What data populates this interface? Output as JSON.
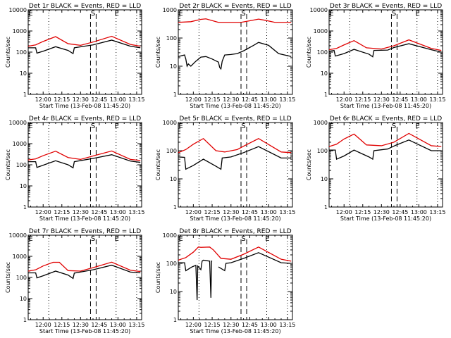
{
  "figure": {
    "xlabel": "Start Time (13-Feb-08 11:45:20)",
    "ylabel": "Counts/sec",
    "legend_text": "BLACK = Events, RED = LLD",
    "colors": {
      "events": "#000000",
      "lld": "#e00000",
      "axes": "#000000",
      "background": "#ffffff"
    }
  },
  "chart_data": [
    {
      "type": "line",
      "title": "Det 1r BLACK = Events, RED = LLD",
      "xlabel": "Start Time (13-Feb-08 11:45:20)",
      "ylabel": "Counts/sec",
      "yscale": "log",
      "ylim": [
        1,
        10000
      ],
      "yticks": [
        "1",
        "10",
        "100",
        "1000",
        "10000"
      ],
      "xlim_minutes": [
        708,
        799
      ],
      "xticks": [
        "12:00",
        "12:15",
        "12:30",
        "12:45",
        "13:00",
        "13:15"
      ],
      "markers": {
        "dotted_min": [
          724.5,
          778.5,
          795
        ],
        "dashed_min": [
          758,
          762.5
        ],
        "labels": [
          {
            "t": "E",
            "min": 710
          },
          {
            "t": "S",
            "min": 760
          },
          {
            "t": "E",
            "min": 779
          }
        ]
      },
      "series": [
        {
          "name": "Events",
          "color": "#000000",
          "x": [
            708,
            714,
            715,
            720,
            730,
            740,
            744,
            745,
            760,
            775,
            790,
            798
          ],
          "y": [
            160,
            160,
            90,
            110,
            180,
            120,
            85,
            160,
            220,
            370,
            190,
            160
          ]
        },
        {
          "name": "LLD",
          "color": "#e00000",
          "x": [
            708,
            714,
            720,
            730,
            740,
            750,
            760,
            775,
            790,
            798
          ],
          "y": [
            190,
            220,
            320,
            540,
            250,
            210,
            300,
            560,
            230,
            190
          ]
        }
      ]
    },
    {
      "type": "line",
      "title": "Det 2r BLACK = Events, RED = LLD",
      "xlabel": "Start Time (13-Feb-08 11:45:20)",
      "ylabel": "Counts/sec",
      "yscale": "log",
      "ylim": [
        1,
        1000
      ],
      "yticks": [
        "1",
        "10",
        "100",
        "1000"
      ],
      "xlim_minutes": [
        708,
        799
      ],
      "xticks": [
        "12:00",
        "12:15",
        "12:30",
        "12:45",
        "13:00",
        "13:15"
      ],
      "markers": {
        "dotted_min": [
          724.5,
          778.5,
          795
        ],
        "dashed_min": [
          758,
          762.5
        ],
        "labels": [
          {
            "t": "E",
            "min": 710
          },
          {
            "t": "S",
            "min": 760
          },
          {
            "t": "E",
            "min": 779
          }
        ]
      },
      "series": [
        {
          "name": "Events",
          "color": "#000000",
          "x": [
            708,
            713,
            714,
            715,
            716,
            718,
            722,
            726,
            730,
            735,
            740,
            741,
            742,
            743,
            745,
            750,
            755,
            760,
            768,
            772,
            780,
            788,
            798
          ],
          "y": [
            22,
            25,
            18,
            10,
            12,
            10,
            15,
            21,
            22,
            18,
            14,
            9,
            8,
            15,
            25,
            26,
            28,
            35,
            55,
            70,
            55,
            28,
            22
          ]
        },
        {
          "name": "LLD",
          "color": "#e00000",
          "x": [
            708,
            718,
            726,
            730,
            740,
            750,
            758,
            765,
            772,
            778,
            785,
            798
          ],
          "y": [
            360,
            380,
            460,
            480,
            360,
            360,
            360,
            410,
            470,
            420,
            360,
            360
          ]
        }
      ]
    },
    {
      "type": "line",
      "title": "Det 3r BLACK = Events, RED = LLD",
      "xlabel": "Start Time (13-Feb-08 11:45:20)",
      "ylabel": "Counts/sec",
      "yscale": "log",
      "ylim": [
        1,
        10000
      ],
      "yticks": [
        "1",
        "10",
        "100",
        "1000",
        "10000"
      ],
      "xlim_minutes": [
        708,
        799
      ],
      "xticks": [
        "12:00",
        "12:15",
        "12:30",
        "12:45",
        "13:00",
        "13:15"
      ],
      "markers": {
        "dotted_min": [
          724.5,
          778.5,
          795
        ],
        "dashed_min": [
          758,
          762.5
        ],
        "labels": [
          {
            "t": "E",
            "min": 710
          },
          {
            "t": "S",
            "min": 760
          },
          {
            "t": "E",
            "min": 779
          }
        ]
      },
      "series": [
        {
          "name": "Events",
          "color": "#000000",
          "x": [
            708,
            712,
            713,
            720,
            728,
            740,
            743,
            744,
            755,
            760,
            772,
            790,
            798
          ],
          "y": [
            110,
            120,
            65,
            85,
            135,
            80,
            60,
            120,
            125,
            165,
            250,
            130,
            100
          ]
        },
        {
          "name": "LLD",
          "color": "#e00000",
          "x": [
            708,
            714,
            720,
            728,
            738,
            750,
            760,
            772,
            790,
            798
          ],
          "y": [
            130,
            150,
            220,
            350,
            160,
            140,
            200,
            380,
            150,
            120
          ]
        }
      ]
    },
    {
      "type": "line",
      "title": "Det 4r BLACK = Events, RED = LLD",
      "xlabel": "Start Time (13-Feb-08 11:45:20)",
      "ylabel": "Counts/sec",
      "yscale": "log",
      "ylim": [
        1,
        10000
      ],
      "yticks": [
        "1",
        "10",
        "100",
        "1000",
        "10000"
      ],
      "xlim_minutes": [
        708,
        799
      ],
      "xticks": [
        "12:00",
        "12:15",
        "12:30",
        "12:45",
        "13:00",
        "13:15"
      ],
      "markers": {
        "dotted_min": [
          724.5,
          778.5,
          795
        ],
        "dashed_min": [
          758,
          762.5
        ],
        "labels": [
          {
            "t": "E",
            "min": 710
          },
          {
            "t": "S",
            "min": 760
          },
          {
            "t": "E",
            "min": 779
          }
        ]
      },
      "series": [
        {
          "name": "Events",
          "color": "#000000",
          "x": [
            708,
            714,
            715,
            720,
            730,
            740,
            744,
            745,
            760,
            775,
            790,
            798
          ],
          "y": [
            140,
            140,
            75,
            95,
            155,
            100,
            72,
            140,
            200,
            300,
            150,
            130
          ]
        },
        {
          "name": "LLD",
          "color": "#e00000",
          "x": [
            708,
            714,
            720,
            730,
            740,
            750,
            760,
            775,
            790,
            798
          ],
          "y": [
            170,
            190,
            270,
            440,
            220,
            180,
            260,
            450,
            180,
            160
          ]
        }
      ]
    },
    {
      "type": "line",
      "title": "Det 5r BLACK = Events, RED = LLD",
      "xlabel": "Start Time (13-Feb-08 11:45:20)",
      "ylabel": "Counts/sec",
      "yscale": "log",
      "ylim": [
        1,
        1000
      ],
      "yticks": [
        "1",
        "10",
        "100",
        "1000"
      ],
      "xlim_minutes": [
        708,
        799
      ],
      "xticks": [
        "12:00",
        "12:15",
        "12:30",
        "12:45",
        "13:00",
        "13:15"
      ],
      "markers": {
        "dotted_min": [
          724.5,
          778.5,
          795
        ],
        "dashed_min": [
          758,
          762.5
        ],
        "labels": [
          {
            "t": "E",
            "min": 710
          },
          {
            "t": "S",
            "min": 760
          },
          {
            "t": "E",
            "min": 779
          }
        ]
      },
      "series": [
        {
          "name": "Events",
          "color": "#000000",
          "x": [
            708,
            713,
            714,
            720,
            728,
            738,
            742,
            743,
            750,
            760,
            772,
            790,
            798
          ],
          "y": [
            60,
            58,
            22,
            30,
            50,
            28,
            22,
            55,
            60,
            85,
            140,
            55,
            55
          ]
        },
        {
          "name": "LLD",
          "color": "#e00000",
          "x": [
            708,
            714,
            720,
            728,
            738,
            745,
            755,
            762,
            772,
            790,
            798
          ],
          "y": [
            85,
            110,
            170,
            270,
            100,
            90,
            110,
            160,
            270,
            90,
            85
          ]
        }
      ]
    },
    {
      "type": "line",
      "title": "Det 6r BLACK = Events, RED = LLD",
      "xlabel": "Start Time (13-Feb-08 11:45:20)",
      "ylabel": "Counts/sec",
      "yscale": "log",
      "ylim": [
        1,
        1000
      ],
      "yticks": [
        "1",
        "10",
        "100",
        "1000"
      ],
      "xlim_minutes": [
        708,
        799
      ],
      "xticks": [
        "12:00",
        "12:15",
        "12:30",
        "12:45",
        "13:00",
        "13:15"
      ],
      "markers": {
        "dotted_min": [
          724.5,
          778.5,
          795
        ],
        "dashed_min": [
          758,
          762.5
        ],
        "labels": [
          {
            "t": "E",
            "min": 710
          },
          {
            "t": "S",
            "min": 760
          },
          {
            "t": "E",
            "min": 779
          }
        ]
      },
      "series": [
        {
          "name": "Events",
          "color": "#000000",
          "x": [
            708,
            713,
            714,
            720,
            728,
            740,
            743,
            744,
            755,
            762,
            772,
            790,
            798
          ],
          "y": [
            105,
            105,
            50,
            65,
            105,
            60,
            50,
            100,
            115,
            160,
            240,
            100,
            100
          ]
        },
        {
          "name": "LLD",
          "color": "#e00000",
          "x": [
            708,
            714,
            720,
            728,
            738,
            750,
            760,
            772,
            790,
            798
          ],
          "y": [
            140,
            170,
            260,
            390,
            160,
            150,
            200,
            410,
            150,
            140
          ]
        }
      ]
    },
    {
      "type": "line",
      "title": "Det 7r BLACK = Events, RED = LLD",
      "xlabel": "Start Time (13-Feb-08 11:45:20)",
      "ylabel": "Counts/sec",
      "yscale": "log",
      "ylim": [
        1,
        10000
      ],
      "yticks": [
        "1",
        "10",
        "100",
        "1000",
        "10000"
      ],
      "xlim_minutes": [
        708,
        799
      ],
      "xticks": [
        "12:00",
        "12:15",
        "12:30",
        "12:45",
        "13:00",
        "13:15"
      ],
      "markers": {
        "dotted_min": [
          724.5,
          778.5,
          795
        ],
        "dashed_min": [
          758,
          762.5
        ],
        "labels": [
          {
            "t": "E",
            "min": 710
          },
          {
            "t": "S",
            "min": 760
          },
          {
            "t": "E",
            "min": 779
          }
        ]
      },
      "series": [
        {
          "name": "Events",
          "color": "#000000",
          "x": [
            708,
            714,
            715,
            720,
            730,
            740,
            744,
            745,
            760,
            775,
            790,
            798
          ],
          "y": [
            165,
            165,
            95,
            120,
            200,
            130,
            90,
            160,
            230,
            380,
            180,
            165
          ]
        },
        {
          "name": "LLD",
          "color": "#e00000",
          "x": [
            708,
            714,
            720,
            728,
            733,
            740,
            750,
            760,
            775,
            790,
            798
          ],
          "y": [
            200,
            230,
            350,
            520,
            520,
            210,
            200,
            290,
            530,
            220,
            190
          ]
        }
      ]
    },
    {
      "type": "line",
      "title": "Det 8r BLACK = Events, RED = LLD",
      "xlabel": "Start Time (13-Feb-08 11:45:20)",
      "ylabel": "Counts/sec",
      "yscale": "log",
      "ylim": [
        1,
        1000
      ],
      "yticks": [
        "1",
        "10",
        "100",
        "1000"
      ],
      "xlim_minutes": [
        708,
        799
      ],
      "xticks": [
        "12:00",
        "12:15",
        "12:30",
        "12:45",
        "13:00",
        "13:15"
      ],
      "markers": {
        "dotted_min": [
          724.5,
          778.5,
          795
        ],
        "dashed_min": [
          758,
          762.5
        ],
        "labels": [
          {
            "t": "E",
            "min": 710
          },
          {
            "t": "S",
            "min": 760
          },
          {
            "t": "E",
            "min": 779
          }
        ]
      },
      "series": [
        {
          "name": "Events",
          "color": "#000000",
          "x": [
            708,
            713,
            714,
            719,
            722,
            723,
            723.5,
            726,
            727,
            728,
            733,
            734,
            734.5,
            735,
            null,
            740,
            745,
            746,
            750,
            760,
            772,
            790,
            798
          ],
          "y": [
            105,
            105,
            55,
            75,
            85,
            5,
            80,
            60,
            120,
            130,
            120,
            6,
            120,
            120,
            null,
            75,
            55,
            100,
            105,
            150,
            240,
            105,
            100
          ]
        },
        {
          "name": "LLD",
          "color": "#e00000",
          "x": [
            708,
            714,
            720,
            724,
            726,
            733,
            736,
            742,
            750,
            760,
            772,
            790,
            798
          ],
          "y": [
            130,
            160,
            250,
            380,
            370,
            380,
            300,
            150,
            140,
            210,
            380,
            140,
            120
          ]
        }
      ]
    }
  ]
}
